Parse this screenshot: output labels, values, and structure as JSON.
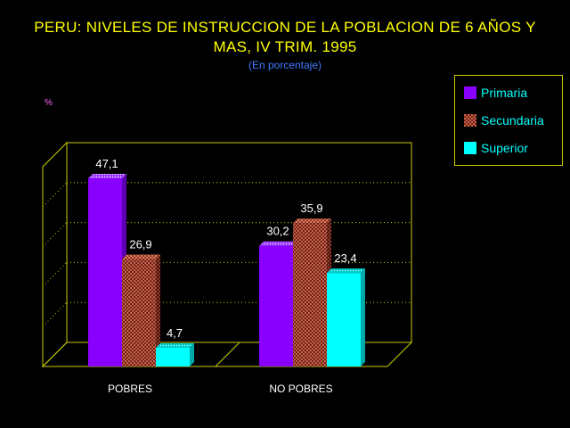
{
  "chart_data": {
    "type": "bar",
    "title_lines": [
      "PERU: NIVELES DE INSTRUCCION DE LA POBLACION DE 6 AÑOS Y",
      "MAS, IV TRIM. 1995"
    ],
    "subtitle": "(En porcentaje)",
    "ylabel": "%",
    "xlabel": "",
    "ylim": [
      0,
      50
    ],
    "grid": true,
    "legend_position": "top-right",
    "categories": [
      "POBRES",
      "NO POBRES"
    ],
    "series": [
      {
        "name": "Primaria",
        "values": [
          47.1,
          30.2
        ],
        "labels": [
          "47,1",
          "30,2"
        ],
        "color": "#8a00ff"
      },
      {
        "name": "Secundaria",
        "values": [
          26.9,
          35.9
        ],
        "labels": [
          "26,9",
          "35,9"
        ],
        "color": "#9b3a2a"
      },
      {
        "name": "Superior",
        "values": [
          4.7,
          23.4
        ],
        "labels": [
          "4,7",
          "23,4"
        ],
        "color": "#00ffff"
      }
    ]
  },
  "colors": {
    "title": "#ffff00",
    "subtitle": "#3d7bff",
    "axis": "#cccc00",
    "legend_text": "#00ffff"
  }
}
